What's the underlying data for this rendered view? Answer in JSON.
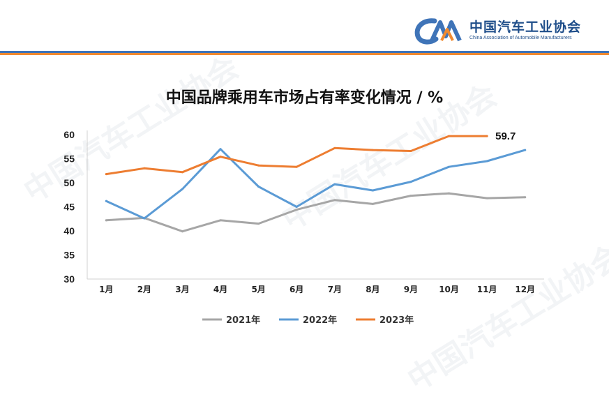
{
  "header": {
    "org_name_cn": "中国汽车工业协会",
    "org_name_en": "China Association of Automobile Manufacturers",
    "logo_letters": "CAAM",
    "accent_blue": "#3f74b8",
    "accent_orange": "#f08a30"
  },
  "chart_data": {
    "type": "line",
    "title": "中国品牌乘用车市场占有率变化情况 / %",
    "categories": [
      "1月",
      "2月",
      "3月",
      "4月",
      "5月",
      "6月",
      "7月",
      "8月",
      "9月",
      "10月",
      "11月",
      "12月"
    ],
    "ylim": [
      30,
      60
    ],
    "yticks": [
      30,
      35,
      40,
      45,
      50,
      55,
      60
    ],
    "grid": false,
    "legend_position": "bottom",
    "series": [
      {
        "name": "2021年",
        "color": "#a6a6a6",
        "values": [
          42.2,
          42.7,
          39.9,
          42.2,
          41.5,
          44.4,
          46.4,
          45.6,
          47.3,
          47.8,
          46.8,
          47.0
        ]
      },
      {
        "name": "2022年",
        "color": "#5b9bd5",
        "values": [
          46.2,
          42.6,
          48.7,
          57.0,
          49.2,
          45.0,
          49.7,
          48.4,
          50.2,
          53.3,
          54.5,
          56.8
        ]
      },
      {
        "name": "2023年",
        "color": "#ed7d31",
        "values": [
          51.8,
          53.0,
          52.2,
          55.4,
          53.6,
          53.3,
          57.2,
          56.8,
          56.6,
          59.7,
          59.7,
          null
        ]
      }
    ],
    "annotations": [
      {
        "series": "2023年",
        "category": "11月",
        "text": "59.7"
      }
    ]
  }
}
